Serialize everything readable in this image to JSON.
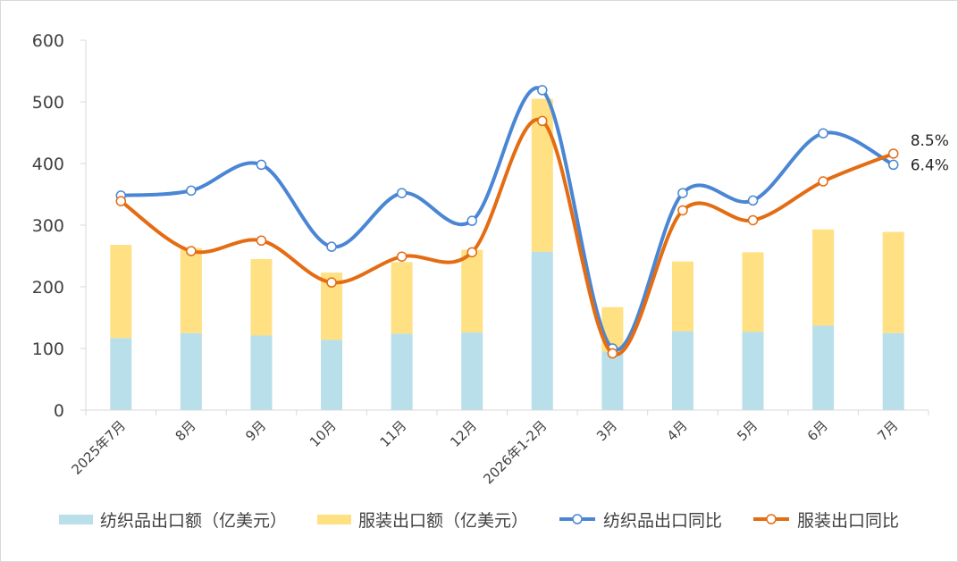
{
  "chart_data": {
    "type": "bar+line",
    "title": "",
    "xlabel": "",
    "ylabel": "",
    "ylim": [
      0,
      600
    ],
    "yticks": [
      0,
      100,
      200,
      300,
      400,
      500,
      600
    ],
    "categories": [
      "2025年7月",
      "8月",
      "9月",
      "10月",
      "11月",
      "12月",
      "2026年1-2月",
      "3月",
      "4月",
      "5月",
      "6月",
      "7月"
    ],
    "stacked_bars": [
      {
        "name": "纺织品出口额（亿美元）",
        "color": "#b9dfea",
        "values": [
          117,
          125,
          121,
          114,
          124,
          126,
          257,
          95,
          128,
          127,
          137,
          125
        ]
      },
      {
        "name": "服装出口额（亿美元）",
        "color": "#ffe082",
        "values": [
          151,
          138,
          124,
          109,
          116,
          134,
          248,
          72,
          113,
          129,
          156,
          164
        ]
      }
    ],
    "lines": [
      {
        "name": "纺织品出口同比",
        "color": "#4a86d4",
        "values": [
          348,
          356,
          398,
          265,
          352,
          307,
          519,
          100,
          352,
          340,
          449,
          398
        ],
        "end_label": "6.4%"
      },
      {
        "name": "服装出口同比",
        "color": "#e46c12",
        "values": [
          339,
          258,
          275,
          207,
          249,
          256,
          469,
          92,
          324,
          308,
          371,
          416
        ],
        "end_label": "8.5%"
      }
    ],
    "legend_position": "bottom",
    "grid": false
  }
}
